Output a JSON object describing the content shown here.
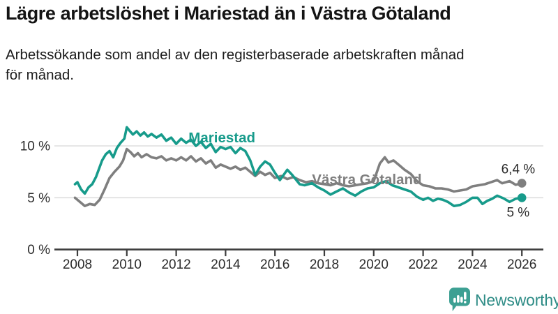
{
  "header": {
    "title": "Lägre arbetslöshet i Mariestad än i Västra Götaland",
    "subtitle_line1": "Arbetssökande som andel av den registerbaserade arbetskraften månad",
    "subtitle_line2": "för månad."
  },
  "footer": {
    "brand": "Newsworthy",
    "brand_color": "#2e8c86",
    "icon_color": "#3da093"
  },
  "chart_data": {
    "type": "line",
    "title": "Lägre arbetslöshet i Mariestad än i Västra Götaland",
    "xlabel": "",
    "ylabel": "",
    "unit": "%",
    "grid": "horizontal",
    "legend": "inline-series-labels",
    "xlim": [
      2007.1,
      2026.9
    ],
    "ylim": [
      0,
      13.3
    ],
    "x_ticks": [
      2008,
      2010,
      2012,
      2014,
      2016,
      2018,
      2020,
      2022,
      2024,
      2026
    ],
    "y_ticks": [
      {
        "value": 0,
        "label": "0 %"
      },
      {
        "value": 5,
        "label": "5 %"
      },
      {
        "value": 10,
        "label": "10 %"
      }
    ],
    "axis_color": "#3d3d3d",
    "grid_color": "#d9d9d9",
    "tick_label_color": "#2b2b2b",
    "series": [
      {
        "name": "Västra Götaland",
        "color": "#7f7f7f",
        "end_label": "6,4 %",
        "end_value": 6.4,
        "label_pos": {
          "year": 2017.5,
          "pct": 6.3
        },
        "end_label_offset": {
          "dx": 19,
          "dy": -14
        },
        "points": [
          [
            2007.9,
            5.0
          ],
          [
            2008.1,
            4.6
          ],
          [
            2008.3,
            4.2
          ],
          [
            2008.5,
            4.4
          ],
          [
            2008.7,
            4.3
          ],
          [
            2008.9,
            4.8
          ],
          [
            2009.1,
            5.8
          ],
          [
            2009.3,
            6.9
          ],
          [
            2009.5,
            7.5
          ],
          [
            2009.7,
            8.0
          ],
          [
            2009.85,
            8.6
          ],
          [
            2010.0,
            9.7
          ],
          [
            2010.15,
            9.4
          ],
          [
            2010.3,
            9.0
          ],
          [
            2010.45,
            9.3
          ],
          [
            2010.6,
            8.9
          ],
          [
            2010.8,
            9.2
          ],
          [
            2011.0,
            8.9
          ],
          [
            2011.2,
            8.8
          ],
          [
            2011.4,
            9.0
          ],
          [
            2011.6,
            8.6
          ],
          [
            2011.8,
            8.8
          ],
          [
            2012.0,
            8.6
          ],
          [
            2012.2,
            8.9
          ],
          [
            2012.4,
            8.6
          ],
          [
            2012.6,
            9.0
          ],
          [
            2012.8,
            8.5
          ],
          [
            2013.0,
            8.8
          ],
          [
            2013.2,
            8.3
          ],
          [
            2013.4,
            8.6
          ],
          [
            2013.6,
            7.9
          ],
          [
            2013.8,
            8.2
          ],
          [
            2014.0,
            8.0
          ],
          [
            2014.2,
            7.8
          ],
          [
            2014.4,
            8.0
          ],
          [
            2014.6,
            7.7
          ],
          [
            2014.8,
            7.9
          ],
          [
            2015.0,
            7.5
          ],
          [
            2015.2,
            7.1
          ],
          [
            2015.4,
            7.5
          ],
          [
            2015.6,
            7.2
          ],
          [
            2015.8,
            7.4
          ],
          [
            2016.0,
            6.9
          ],
          [
            2016.25,
            7.1
          ],
          [
            2016.5,
            6.8
          ],
          [
            2016.75,
            7.0
          ],
          [
            2017.0,
            6.7
          ],
          [
            2017.25,
            6.5
          ],
          [
            2017.5,
            6.6
          ],
          [
            2017.75,
            6.4
          ],
          [
            2018.0,
            6.3
          ],
          [
            2018.25,
            6.2
          ],
          [
            2018.5,
            6.4
          ],
          [
            2018.75,
            6.2
          ],
          [
            2019.0,
            6.1
          ],
          [
            2019.25,
            6.2
          ],
          [
            2019.5,
            6.3
          ],
          [
            2019.75,
            6.4
          ],
          [
            2020.0,
            6.6
          ],
          [
            2020.25,
            8.3
          ],
          [
            2020.45,
            8.9
          ],
          [
            2020.6,
            8.4
          ],
          [
            2020.8,
            8.6
          ],
          [
            2021.0,
            8.2
          ],
          [
            2021.25,
            7.7
          ],
          [
            2021.5,
            7.3
          ],
          [
            2021.75,
            6.6
          ],
          [
            2022.0,
            6.2
          ],
          [
            2022.25,
            6.1
          ],
          [
            2022.5,
            5.9
          ],
          [
            2022.75,
            5.9
          ],
          [
            2023.0,
            5.8
          ],
          [
            2023.25,
            5.6
          ],
          [
            2023.5,
            5.7
          ],
          [
            2023.75,
            5.8
          ],
          [
            2024.0,
            6.1
          ],
          [
            2024.25,
            6.2
          ],
          [
            2024.5,
            6.3
          ],
          [
            2024.75,
            6.5
          ],
          [
            2025.0,
            6.7
          ],
          [
            2025.2,
            6.4
          ],
          [
            2025.5,
            6.6
          ],
          [
            2025.75,
            6.25
          ],
          [
            2026.0,
            6.4
          ]
        ]
      },
      {
        "name": "Mariestad",
        "color": "#179b8b",
        "end_label": "5 %",
        "end_value": 5.0,
        "label_pos": {
          "year": 2012.5,
          "pct": 10.35
        },
        "end_label_offset": {
          "dx": 11,
          "dy": 27
        },
        "points": [
          [
            2007.9,
            6.3
          ],
          [
            2008.0,
            6.5
          ],
          [
            2008.15,
            5.8
          ],
          [
            2008.3,
            5.4
          ],
          [
            2008.45,
            6.0
          ],
          [
            2008.6,
            6.3
          ],
          [
            2008.75,
            7.0
          ],
          [
            2009.0,
            8.6
          ],
          [
            2009.15,
            9.2
          ],
          [
            2009.3,
            9.5
          ],
          [
            2009.45,
            8.9
          ],
          [
            2009.6,
            9.8
          ],
          [
            2009.75,
            10.3
          ],
          [
            2009.9,
            10.7
          ],
          [
            2010.0,
            11.8
          ],
          [
            2010.1,
            11.5
          ],
          [
            2010.25,
            11.1
          ],
          [
            2010.4,
            11.4
          ],
          [
            2010.55,
            11.0
          ],
          [
            2010.7,
            11.3
          ],
          [
            2010.85,
            10.9
          ],
          [
            2011.0,
            11.15
          ],
          [
            2011.2,
            10.8
          ],
          [
            2011.4,
            11.1
          ],
          [
            2011.6,
            10.5
          ],
          [
            2011.8,
            10.8
          ],
          [
            2012.0,
            10.2
          ],
          [
            2012.2,
            10.7
          ],
          [
            2012.4,
            10.3
          ],
          [
            2012.6,
            10.6
          ],
          [
            2012.8,
            10.0
          ],
          [
            2013.0,
            10.4
          ],
          [
            2013.2,
            9.8
          ],
          [
            2013.4,
            10.2
          ],
          [
            2013.6,
            9.4
          ],
          [
            2013.8,
            9.9
          ],
          [
            2014.0,
            9.7
          ],
          [
            2014.2,
            9.9
          ],
          [
            2014.4,
            9.3
          ],
          [
            2014.6,
            9.8
          ],
          [
            2014.8,
            9.5
          ],
          [
            2015.0,
            8.6
          ],
          [
            2015.2,
            7.2
          ],
          [
            2015.4,
            8.0
          ],
          [
            2015.6,
            8.5
          ],
          [
            2015.8,
            8.2
          ],
          [
            2016.0,
            7.4
          ],
          [
            2016.2,
            6.7
          ],
          [
            2016.5,
            7.7
          ],
          [
            2016.7,
            7.2
          ],
          [
            2017.0,
            6.3
          ],
          [
            2017.2,
            6.2
          ],
          [
            2017.5,
            6.4
          ],
          [
            2017.75,
            6.0
          ],
          [
            2018.0,
            5.7
          ],
          [
            2018.25,
            5.3
          ],
          [
            2018.5,
            5.6
          ],
          [
            2018.75,
            5.9
          ],
          [
            2019.0,
            5.5
          ],
          [
            2019.25,
            5.2
          ],
          [
            2019.5,
            5.6
          ],
          [
            2019.75,
            5.9
          ],
          [
            2020.0,
            6.0
          ],
          [
            2020.25,
            6.4
          ],
          [
            2020.5,
            6.6
          ],
          [
            2020.75,
            6.2
          ],
          [
            2021.0,
            6.0
          ],
          [
            2021.25,
            5.8
          ],
          [
            2021.5,
            5.6
          ],
          [
            2021.75,
            5.1
          ],
          [
            2022.0,
            4.8
          ],
          [
            2022.2,
            5.0
          ],
          [
            2022.4,
            4.7
          ],
          [
            2022.6,
            4.9
          ],
          [
            2022.8,
            4.8
          ],
          [
            2023.0,
            4.6
          ],
          [
            2023.25,
            4.2
          ],
          [
            2023.5,
            4.3
          ],
          [
            2023.75,
            4.6
          ],
          [
            2024.0,
            5.0
          ],
          [
            2024.2,
            5.0
          ],
          [
            2024.4,
            4.4
          ],
          [
            2024.6,
            4.7
          ],
          [
            2024.8,
            4.9
          ],
          [
            2025.0,
            5.2
          ],
          [
            2025.25,
            4.95
          ],
          [
            2025.5,
            4.6
          ],
          [
            2025.75,
            4.9
          ],
          [
            2026.0,
            5.0
          ]
        ]
      }
    ]
  }
}
